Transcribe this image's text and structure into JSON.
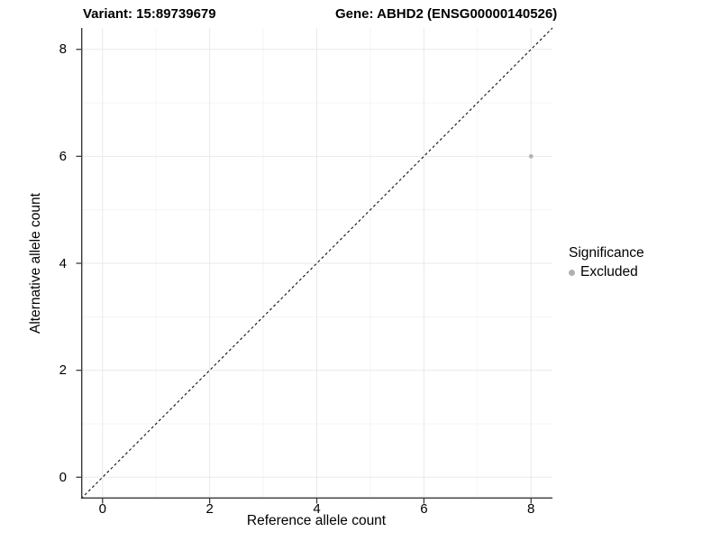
{
  "titles": {
    "variant": "Variant: 15:89739679",
    "gene": "Gene: ABHD2 (ENSG00000140526)"
  },
  "legend": {
    "title": "Significance",
    "items": [
      {
        "label": "Excluded",
        "marker": "circle",
        "color": "#b0b0b0"
      }
    ]
  },
  "colors": {
    "background": "#ffffff",
    "grid_major": "#e9e9e9",
    "grid_minor": "#f4f4f4",
    "axis": "#3a3a3a",
    "reference_line": "#1a1a1a",
    "point": "#b3b3b3"
  },
  "chart_data": {
    "type": "scatter",
    "title": "Variant: 15:89739679  /  Gene: ABHD2 (ENSG00000140526)",
    "xlabel": "Reference allele count",
    "ylabel": "Alternative allele count",
    "xlim": [
      -0.4,
      8.4
    ],
    "ylim": [
      -0.4,
      8.4
    ],
    "x_ticks": [
      0,
      2,
      4,
      6,
      8
    ],
    "y_ticks": [
      0,
      2,
      4,
      6,
      8
    ],
    "x_minor": [
      1,
      3,
      5,
      7
    ],
    "y_minor": [
      1,
      3,
      5,
      7
    ],
    "grid": true,
    "legend_position": "right",
    "series": [
      {
        "name": "Excluded",
        "points": [
          {
            "x": 8,
            "y": 6
          }
        ],
        "color": "#b3b3b3"
      }
    ],
    "reference_line": {
      "slope": 1,
      "intercept": 0,
      "style": "dashed"
    }
  }
}
